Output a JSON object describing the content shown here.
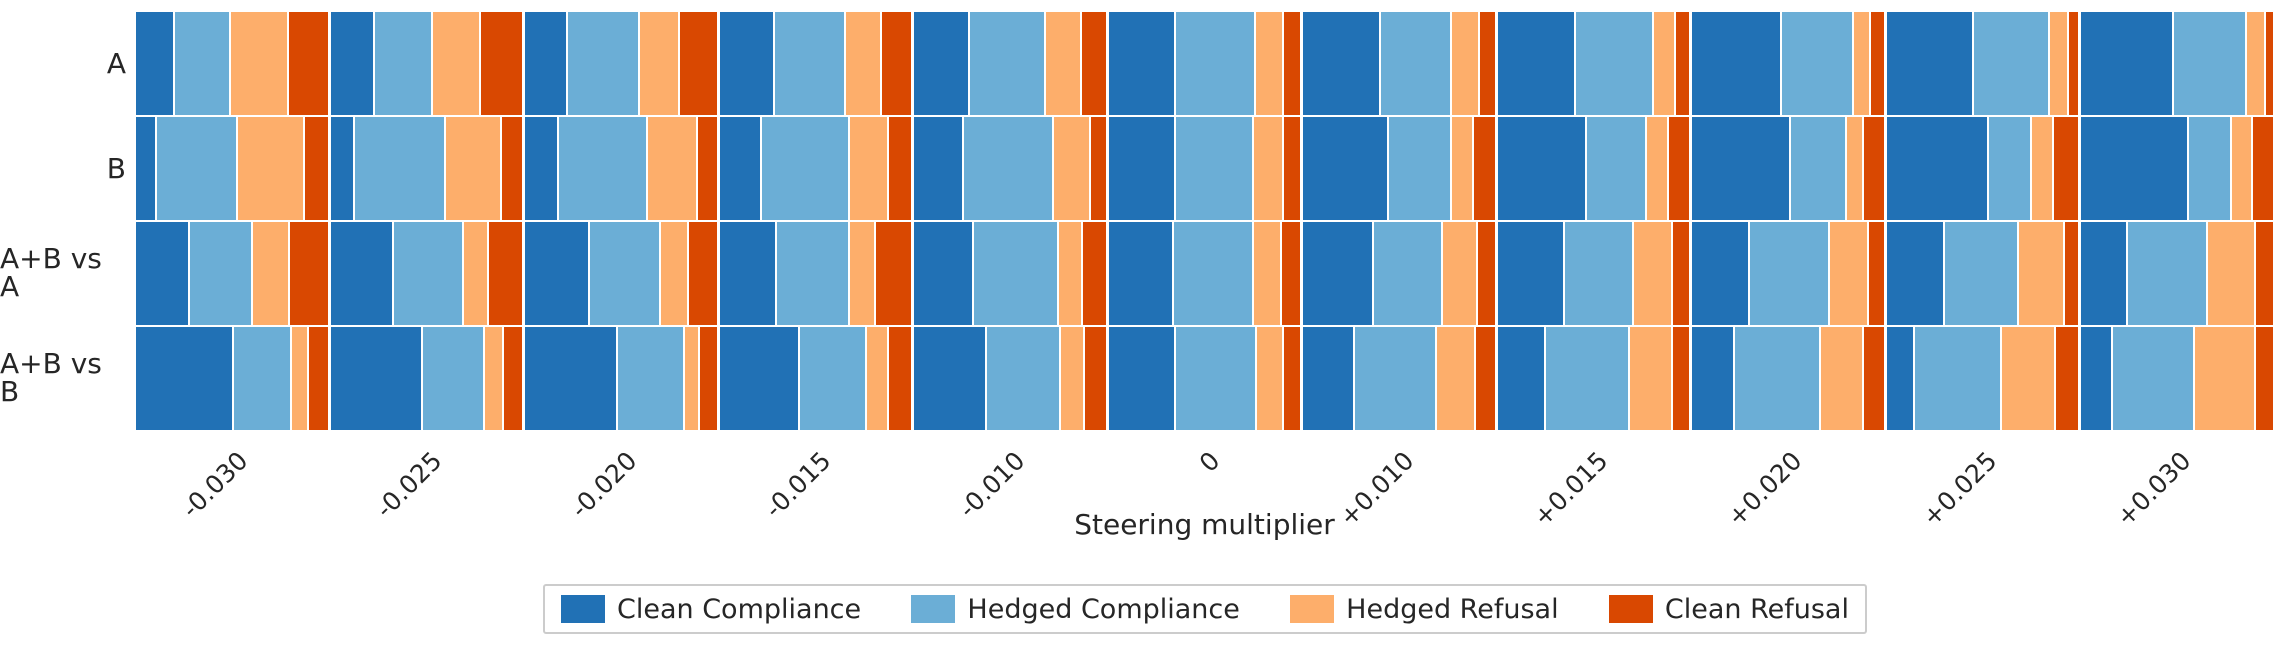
{
  "chart_data": {
    "type": "bar",
    "subtype": "grid of 100%-stacked horizontal bars (one stacked bar per row x steering-multiplier cell)",
    "title": "",
    "xlabel": "Steering multiplier",
    "ylabel": "",
    "legend_position": "bottom-center",
    "grid": false,
    "rows": [
      "A",
      "B",
      "A+B vs A",
      "A+B vs B"
    ],
    "x_tick_labels": [
      "-0.030",
      "-0.025",
      "-0.020",
      "-0.015",
      "-0.010",
      "0",
      "+0.010",
      "+0.015",
      "+0.020",
      "+0.025",
      "+0.030"
    ],
    "series_labels": [
      "Clean Compliance",
      "Hedged Compliance",
      "Hedged Refusal",
      "Clean Refusal"
    ],
    "colors": [
      "#2171b5",
      "#6baed6",
      "#fdae6b",
      "#d94801"
    ],
    "values_note": "proportions per cell ordered [Clean Compliance, Hedged Compliance, Hedged Refusal, Clean Refusal]; rows ordered A, B, A+B vs A, A+B vs B; columns ordered by x_tick_labels",
    "values": [
      [
        [
          0.2,
          0.29,
          0.3,
          0.21
        ],
        [
          0.23,
          0.3,
          0.25,
          0.22
        ],
        [
          0.22,
          0.38,
          0.2,
          0.2
        ],
        [
          0.29,
          0.37,
          0.18,
          0.16
        ],
        [
          0.29,
          0.4,
          0.18,
          0.13
        ],
        [
          0.35,
          0.42,
          0.14,
          0.09
        ],
        [
          0.41,
          0.37,
          0.14,
          0.08
        ],
        [
          0.41,
          0.41,
          0.11,
          0.07
        ],
        [
          0.47,
          0.38,
          0.08,
          0.07
        ],
        [
          0.46,
          0.4,
          0.09,
          0.05
        ],
        [
          0.49,
          0.38,
          0.09,
          0.04
        ]
      ],
      [
        [
          0.1,
          0.43,
          0.35,
          0.12
        ],
        [
          0.12,
          0.48,
          0.29,
          0.11
        ],
        [
          0.17,
          0.47,
          0.26,
          0.1
        ],
        [
          0.22,
          0.46,
          0.2,
          0.12
        ],
        [
          0.26,
          0.47,
          0.19,
          0.08
        ],
        [
          0.35,
          0.41,
          0.15,
          0.09
        ],
        [
          0.45,
          0.33,
          0.11,
          0.11
        ],
        [
          0.47,
          0.31,
          0.11,
          0.11
        ],
        [
          0.52,
          0.29,
          0.08,
          0.11
        ],
        [
          0.54,
          0.22,
          0.11,
          0.13
        ],
        [
          0.57,
          0.22,
          0.1,
          0.11
        ]
      ],
      [
        [
          0.28,
          0.33,
          0.19,
          0.2
        ],
        [
          0.33,
          0.37,
          0.12,
          0.18
        ],
        [
          0.34,
          0.37,
          0.14,
          0.15
        ],
        [
          0.3,
          0.38,
          0.13,
          0.19
        ],
        [
          0.31,
          0.45,
          0.12,
          0.12
        ],
        [
          0.34,
          0.42,
          0.14,
          0.1
        ],
        [
          0.37,
          0.36,
          0.18,
          0.09
        ],
        [
          0.35,
          0.36,
          0.2,
          0.09
        ],
        [
          0.3,
          0.42,
          0.2,
          0.08
        ],
        [
          0.3,
          0.39,
          0.24,
          0.07
        ],
        [
          0.24,
          0.42,
          0.25,
          0.09
        ]
      ],
      [
        [
          0.52,
          0.3,
          0.08,
          0.1
        ],
        [
          0.49,
          0.32,
          0.09,
          0.1
        ],
        [
          0.49,
          0.35,
          0.07,
          0.09
        ],
        [
          0.42,
          0.35,
          0.11,
          0.12
        ],
        [
          0.38,
          0.39,
          0.12,
          0.11
        ],
        [
          0.35,
          0.43,
          0.13,
          0.09
        ],
        [
          0.27,
          0.43,
          0.2,
          0.1
        ],
        [
          0.25,
          0.44,
          0.22,
          0.09
        ],
        [
          0.22,
          0.45,
          0.22,
          0.11
        ],
        [
          0.14,
          0.46,
          0.28,
          0.12
        ],
        [
          0.16,
          0.43,
          0.32,
          0.09
        ]
      ]
    ]
  }
}
